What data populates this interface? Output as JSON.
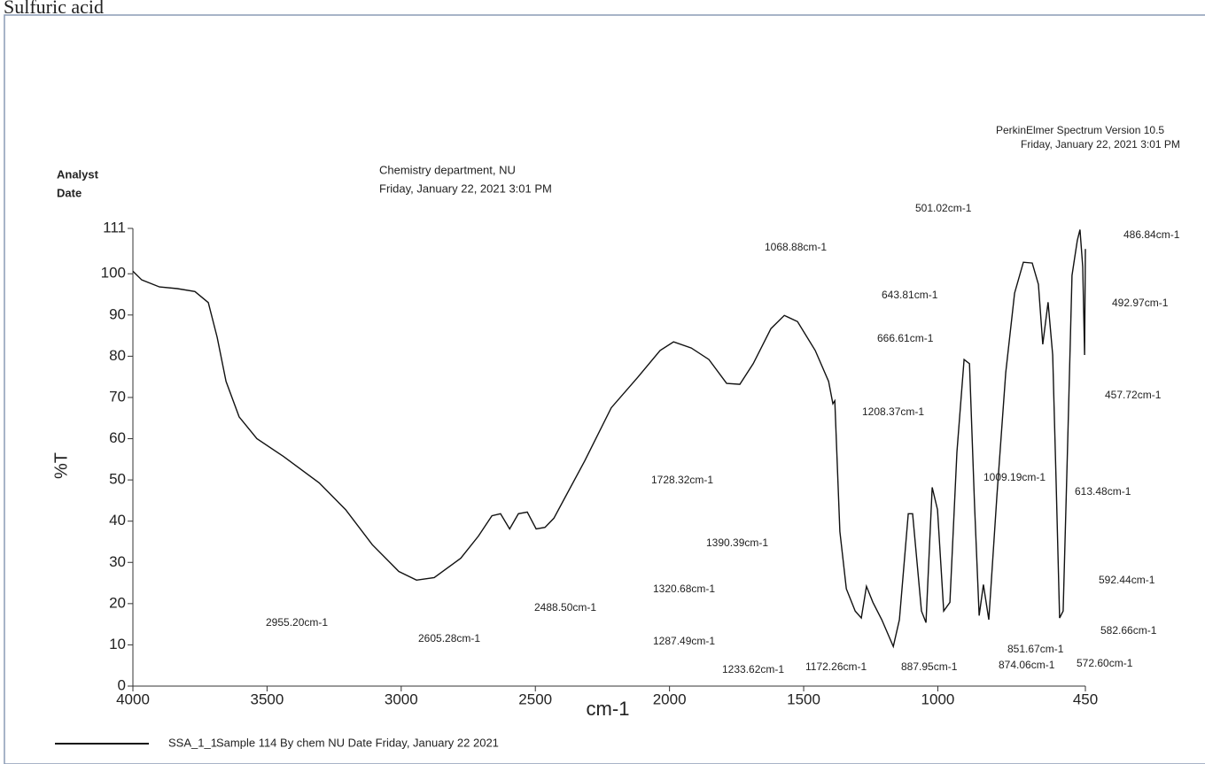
{
  "chart_data": {
    "type": "line",
    "title": "Sulfuric acid",
    "analyst_label": "Analyst",
    "date_label": "Date",
    "department": "Chemistry department, NU",
    "date_text": "Friday, January 22, 2021 3:01 PM",
    "software": "PerkinElmer Spectrum Version 10.5",
    "software_date": "Friday, January 22, 2021 3:01 PM",
    "xlabel": "cm-1",
    "ylabel": "%T",
    "legend_description": "Sample 114 By chem NU Date Friday, January 22 2021",
    "xlim": [
      4000,
      450
    ],
    "ylim": [
      0,
      111
    ],
    "xticks": [
      4000,
      3500,
      3000,
      2500,
      2000,
      1500,
      1000,
      450
    ],
    "yticks": [
      0,
      10,
      20,
      30,
      40,
      50,
      60,
      70,
      80,
      90,
      100,
      111
    ],
    "x": [
      4000,
      3967,
      3901,
      3835,
      3769,
      3719,
      3686,
      3653,
      3604,
      3538,
      3439,
      3306,
      3207,
      3108,
      3009,
      2943,
      2877,
      2778,
      2712,
      2662,
      2630,
      2596,
      2563,
      2530,
      2497,
      2464,
      2431,
      2316,
      2217,
      2118,
      2035,
      1985,
      1919,
      1853,
      1787,
      1738,
      1688,
      1622,
      1572,
      1523,
      1457,
      1407,
      1391,
      1384,
      1365,
      1341,
      1308,
      1285,
      1266,
      1242,
      1209,
      1166,
      1143,
      1110,
      1094,
      1061,
      1044,
      1021,
      1001,
      978,
      955,
      929,
      902,
      882,
      863,
      846,
      830,
      810,
      780,
      747,
      714,
      681,
      648,
      625,
      609,
      589,
      572,
      559,
      546,
      533,
      516,
      500,
      490,
      480,
      470,
      460,
      453,
      450
    ],
    "series": [
      {
        "name": "SSA_1_1",
        "color": "#111111",
        "values": [
          100.6,
          98.5,
          96.8,
          96.4,
          95.7,
          93,
          84.6,
          73.9,
          65.3,
          60,
          55.7,
          49.3,
          42.8,
          34.3,
          27.8,
          25.7,
          26.3,
          31,
          36.4,
          41.3,
          41.8,
          38.1,
          41.8,
          42.2,
          38.1,
          38.5,
          40.7,
          54.6,
          67.5,
          74.9,
          81.4,
          83.5,
          82,
          79.2,
          73.4,
          73.2,
          78.2,
          86.7,
          89.9,
          88.4,
          81.4,
          73.9,
          68.5,
          69.2,
          37.5,
          23.6,
          18.2,
          16.5,
          24.2,
          20.3,
          16.1,
          9.6,
          16.1,
          41.8,
          41.8,
          18.2,
          15.4,
          48.2,
          42.8,
          18.2,
          20.3,
          56.7,
          79.2,
          78.2,
          43.9,
          17.1,
          24.6,
          16.1,
          46,
          76,
          95.3,
          102.8,
          102.6,
          97.4,
          82.9,
          93.1,
          80.3,
          49.3,
          16.5,
          18.2,
          58.9,
          99.6,
          103.9,
          108.1,
          110.7,
          101.7,
          80.3,
          106
        ]
      }
    ],
    "annotations": [
      "2955.20cm-1",
      "2605.28cm-1",
      "2488.50cm-1",
      "1728.32cm-1",
      "1390.39cm-1",
      "1320.68cm-1",
      "1287.49cm-1",
      "1233.62cm-1",
      "1172.26cm-1",
      "887.95cm-1",
      "874.06cm-1",
      "572.60cm-1",
      "851.67cm-1",
      "582.66cm-1",
      "592.44cm-1",
      "613.48cm-1",
      "1009.19cm-1",
      "457.72cm-1",
      "1208.37cm-1",
      "666.61cm-1",
      "643.81cm-1",
      "1068.88cm-1",
      "501.02cm-1",
      "486.84cm-1",
      "492.97cm-1"
    ]
  }
}
